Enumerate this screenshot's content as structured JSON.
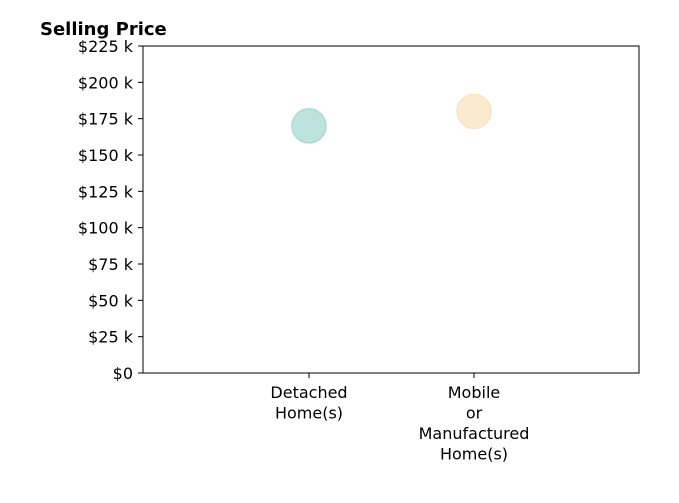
{
  "chart_data": {
    "type": "scatter",
    "title": "Selling Price",
    "xlabel": "",
    "ylabel": "",
    "categories": [
      [
        "Detached",
        "Home(s)"
      ],
      [
        "Mobile",
        "or",
        "Manufactured",
        "Home(s)"
      ]
    ],
    "values": [
      170000,
      180000
    ],
    "point_colors": [
      "#a8dad4",
      "#f9e3c0"
    ],
    "ylim": [
      0,
      225000
    ],
    "yticks": [
      0,
      25000,
      50000,
      75000,
      100000,
      125000,
      150000,
      175000,
      200000,
      225000
    ],
    "ytick_labels": [
      "$0",
      "$25 k",
      "$50 k",
      "$75 k",
      "$100 k",
      "$125 k",
      "$150 k",
      "$175 k",
      "$200 k",
      "$225 k"
    ],
    "grid": false,
    "legend": "none"
  }
}
